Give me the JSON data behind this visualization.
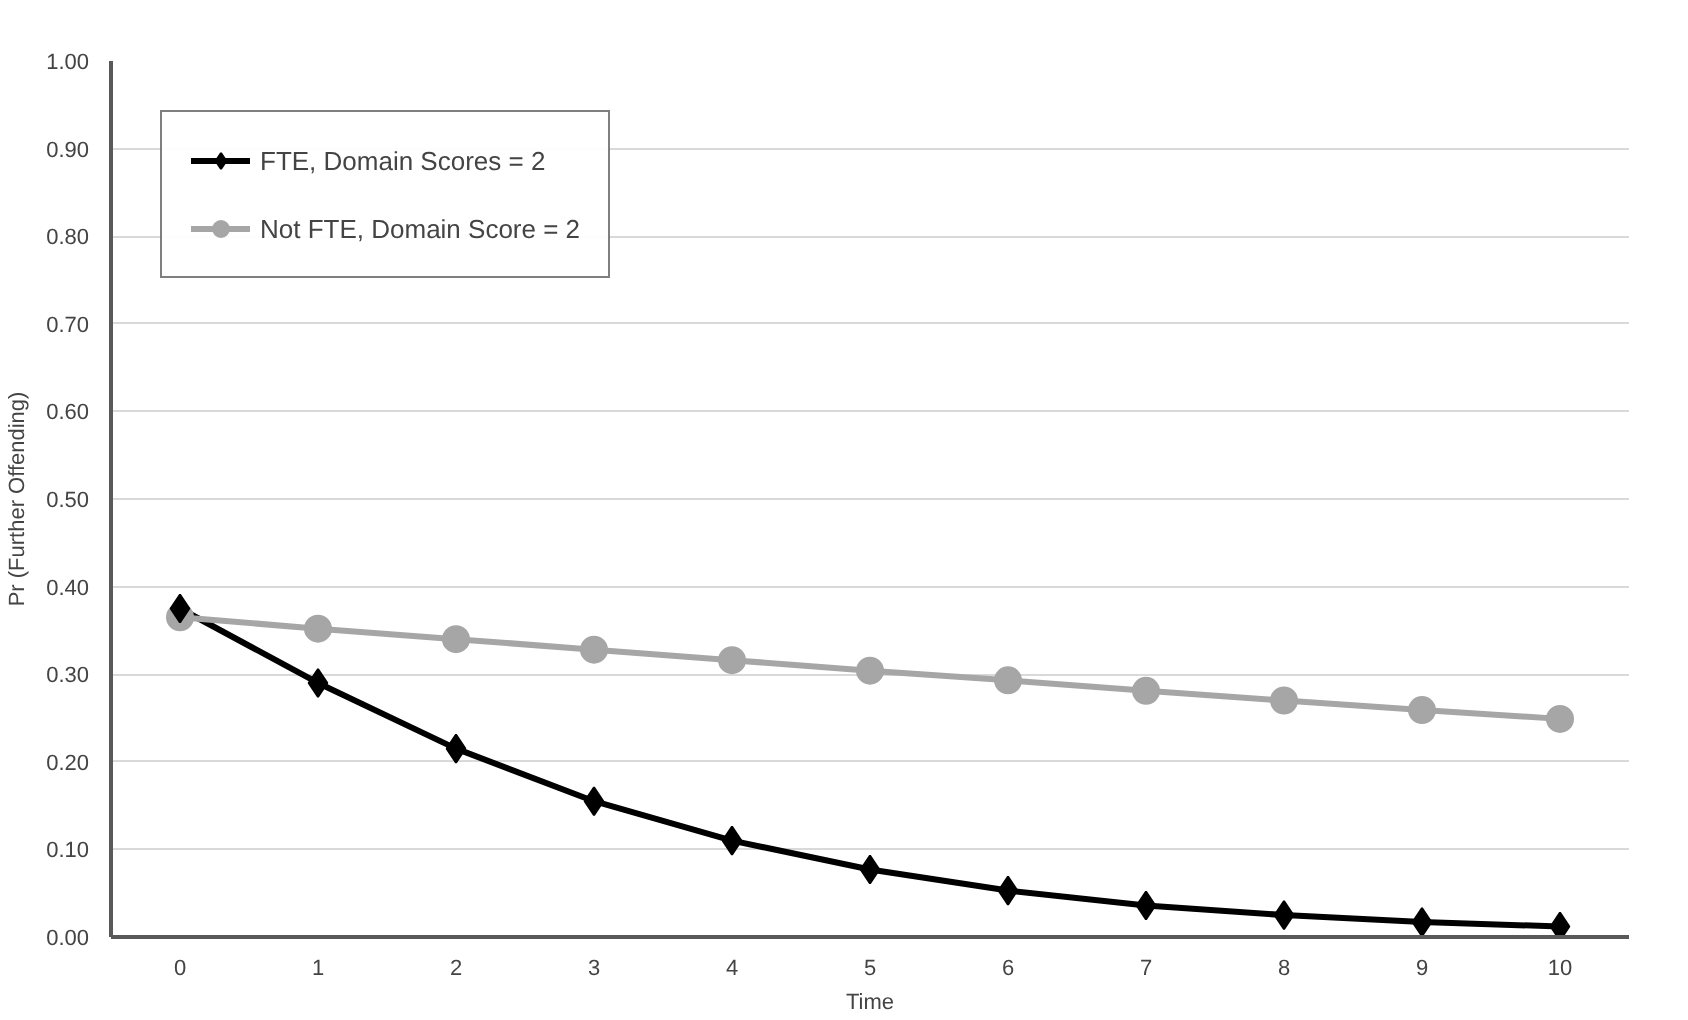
{
  "chart_data": {
    "type": "line",
    "xlabel": "Time",
    "ylabel": "Pr (Further Offending)",
    "categories": [
      "0",
      "1",
      "2",
      "3",
      "4",
      "5",
      "6",
      "7",
      "8",
      "9",
      "10"
    ],
    "series": [
      {
        "name": "FTE, Domain Scores = 2",
        "color": "#000000",
        "marker": "diamond",
        "values": [
          0.375,
          0.29,
          0.215,
          0.155,
          0.11,
          0.077,
          0.053,
          0.036,
          0.025,
          0.017,
          0.012
        ]
      },
      {
        "name": "Not FTE, Domain Score = 2",
        "color": "#a6a6a6",
        "marker": "circle",
        "values": [
          0.365,
          0.352,
          0.34,
          0.328,
          0.316,
          0.304,
          0.293,
          0.281,
          0.27,
          0.259,
          0.249
        ]
      }
    ],
    "ylim": [
      0,
      1
    ],
    "yticks": [
      {
        "value": 0,
        "label": "0.00"
      },
      {
        "value": 0.1,
        "label": "0.10"
      },
      {
        "value": 0.2,
        "label": "0.20"
      },
      {
        "value": 0.3,
        "label": "0.30"
      },
      {
        "value": 0.4,
        "label": "0.40"
      },
      {
        "value": 0.5,
        "label": "0.50"
      },
      {
        "value": 0.6,
        "label": "0.60"
      },
      {
        "value": 0.7,
        "label": "0.70"
      },
      {
        "value": 0.8,
        "label": "0.80"
      },
      {
        "value": 0.9,
        "label": "0.90"
      },
      {
        "value": 1,
        "label": "1.00"
      }
    ],
    "grid": "y",
    "legend": "top left",
    "line_style": "solid"
  }
}
